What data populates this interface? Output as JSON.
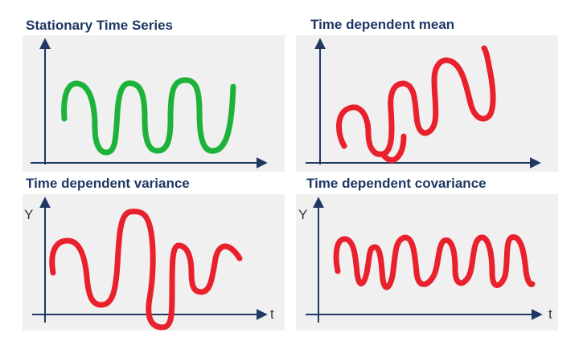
{
  "panels": [
    {
      "title": "Stationary Time Series",
      "y_label": "",
      "x_label": ""
    },
    {
      "title": "Time dependent mean",
      "y_label": "",
      "x_label": ""
    },
    {
      "title": "Time dependent variance",
      "y_label": "Y",
      "x_label": "t"
    },
    {
      "title": "Time dependent covariance",
      "y_label": "Y",
      "x_label": "t"
    }
  ],
  "colors": {
    "panel_bg": "#f0f0f0",
    "axis": "#1f3864",
    "title": "#1f3864",
    "stationary_curve": "#1db33a",
    "nonstationary_curve": "#e8212d"
  }
}
